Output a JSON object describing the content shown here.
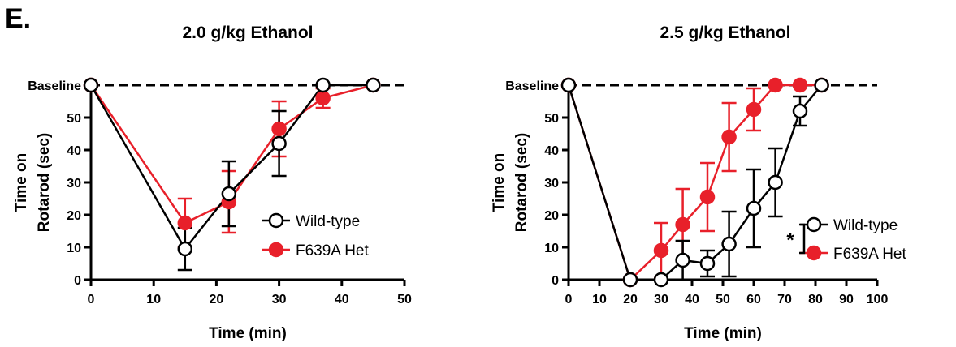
{
  "panel_label": "E.",
  "colors": {
    "wild_type": "#000000",
    "het": "#e8202a",
    "baseline": "#000000"
  },
  "chart_data": [
    {
      "type": "line",
      "title": "2.0 g/kg Ethanol",
      "xlabel": "Time (min)",
      "ylabel_line1": "Time on",
      "ylabel_line2": "Rotarod (sec)",
      "xlim": [
        0,
        50
      ],
      "ylim": [
        0,
        60
      ],
      "xticks": [
        0,
        10,
        20,
        30,
        40,
        50
      ],
      "yticks": [
        0,
        10,
        20,
        30,
        40,
        50
      ],
      "baseline_label": "Baseline",
      "baseline_value": 60,
      "legend_position": "right-middle",
      "significance": "",
      "series": [
        {
          "name": "Wild-type",
          "marker": "open-circle",
          "color": "#000000",
          "x": [
            0,
            15,
            22,
            30,
            37,
            45
          ],
          "y": [
            60,
            9.5,
            26.5,
            42,
            60,
            60
          ],
          "err": [
            0,
            6.5,
            10,
            10,
            0,
            0
          ]
        },
        {
          "name": "F639A Het",
          "marker": "filled-circle",
          "color": "#e8202a",
          "x": [
            0,
            15,
            22,
            30,
            37,
            45
          ],
          "y": [
            60,
            17.5,
            24,
            46.5,
            56,
            60
          ],
          "err": [
            0,
            7.5,
            9.5,
            8.5,
            3,
            0
          ]
        }
      ]
    },
    {
      "type": "line",
      "title": "2.5 g/kg Ethanol",
      "xlabel": "Time (min)",
      "ylabel_line1": "Time on",
      "ylabel_line2": "Rotarod (sec)",
      "xlim": [
        0,
        100
      ],
      "ylim": [
        0,
        60
      ],
      "xticks": [
        0,
        10,
        20,
        30,
        40,
        50,
        60,
        70,
        80,
        90,
        100
      ],
      "yticks": [
        0,
        10,
        20,
        30,
        40,
        50
      ],
      "baseline_label": "Baseline",
      "baseline_value": 60,
      "legend_position": "right-bottom",
      "significance": "*",
      "series": [
        {
          "name": "Wild-type",
          "marker": "open-circle",
          "color": "#000000",
          "x": [
            0,
            20,
            30,
            37,
            45,
            52,
            60,
            67,
            75,
            82
          ],
          "y": [
            60,
            0,
            0,
            6,
            5,
            11,
            22,
            30,
            52,
            60
          ],
          "err": [
            0,
            0,
            0,
            6,
            4,
            10,
            12,
            10.5,
            4.5,
            0
          ]
        },
        {
          "name": "F639A Het",
          "marker": "filled-circle",
          "color": "#e8202a",
          "x": [
            0,
            20,
            30,
            37,
            45,
            52,
            60,
            67,
            75,
            82
          ],
          "y": [
            60,
            0,
            9,
            17,
            25.5,
            44,
            52.5,
            60,
            60,
            60
          ],
          "err": [
            0,
            0,
            8.5,
            11,
            10.5,
            10.5,
            6.5,
            0,
            0,
            0
          ]
        }
      ]
    }
  ]
}
